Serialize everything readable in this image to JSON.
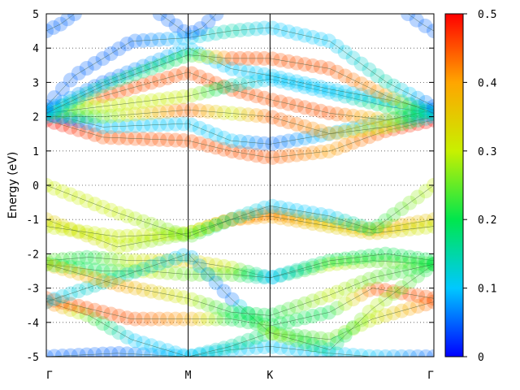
{
  "chart_data": {
    "type": "scatter",
    "title": "",
    "ylabel": "Energy (eV)",
    "xlabel": "",
    "ylim": [
      -5,
      5
    ],
    "yticks": [
      "5",
      "4",
      "3",
      "2",
      "1",
      "0",
      "-1",
      "-2",
      "-3",
      "-4",
      "-5"
    ],
    "kpoints": [
      {
        "label": "Γ",
        "x": 0
      },
      {
        "label": "M",
        "x": 1
      },
      {
        "label": "K",
        "x": 1.577
      },
      {
        "label": "Γ",
        "x": 2.732
      }
    ],
    "grid": "horizontal dotted lines at integer energies",
    "colorbar": {
      "min": 0,
      "max": 0.5,
      "ticks": [
        "0",
        "0.1",
        "0.2",
        "0.3",
        "0.4",
        "0.5"
      ],
      "colors": [
        "#0000ff",
        "#00c8ff",
        "#00e64d",
        "#c8f000",
        "#ffa500",
        "#ff0000"
      ]
    },
    "bands": [
      {
        "name": "b1",
        "x": [
          0,
          0.5,
          1,
          1.3,
          1.577,
          2.0,
          2.3,
          2.732
        ],
        "y": [
          -5.0,
          -4.9,
          -5.0,
          -4.8,
          -4.7,
          -4.9,
          -5.0,
          -5.0
        ],
        "w": [
          0.05,
          0.05,
          0.1,
          0.1,
          0.1,
          0.1,
          0.1,
          0.05
        ]
      },
      {
        "name": "b2",
        "x": [
          0,
          0.3,
          0.6,
          1,
          1.3,
          1.577,
          2.0,
          2.3,
          2.732
        ],
        "y": [
          -3.4,
          -3.8,
          -4.5,
          -5.0,
          -4.7,
          -4.3,
          -4.5,
          -3.9,
          -3.4
        ],
        "w": [
          0.45,
          0.25,
          0.1,
          0.1,
          0.15,
          0.2,
          0.25,
          0.3,
          0.45
        ]
      },
      {
        "name": "b3",
        "x": [
          0,
          0.3,
          0.6,
          1,
          1.3,
          1.577,
          2.0,
          2.3,
          2.732
        ],
        "y": [
          -3.3,
          -3.6,
          -3.9,
          -3.9,
          -3.9,
          -4.1,
          -3.7,
          -3.0,
          -3.3
        ],
        "w": [
          0.45,
          0.45,
          0.45,
          0.4,
          0.2,
          0.2,
          0.2,
          0.45,
          0.45
        ]
      },
      {
        "name": "b4",
        "x": [
          0,
          0.3,
          0.6,
          1,
          1.3,
          1.577,
          2.0,
          2.3,
          2.732
        ],
        "y": [
          -2.2,
          -2.1,
          -2.2,
          -2.2,
          -2.4,
          -2.7,
          -2.3,
          -2.2,
          -2.3
        ],
        "w": [
          0.25,
          0.2,
          0.3,
          0.35,
          0.3,
          0.1,
          0.3,
          0.25,
          0.25
        ]
      },
      {
        "name": "b5",
        "x": [
          0,
          0.4,
          0.7,
          1,
          1.3,
          1.577,
          2.0,
          2.4,
          2.732
        ],
        "y": [
          -2.3,
          -2.5,
          -2.5,
          -2.6,
          -2.6,
          -2.7,
          -2.2,
          -2.0,
          -2.2
        ],
        "w": [
          0.2,
          0.2,
          0.3,
          0.25,
          0.25,
          0.1,
          0.2,
          0.2,
          0.2
        ]
      },
      {
        "name": "b6",
        "x": [
          0,
          0.5,
          1,
          1.3,
          1.577,
          2.0,
          2.3,
          2.732
        ],
        "y": [
          -3.4,
          -2.7,
          -2.0,
          -3.3,
          -4.3,
          -4.8,
          -3.6,
          -2.3
        ],
        "w": [
          0.1,
          0.15,
          0.1,
          0.05,
          0.3,
          0.15,
          0.3,
          0.2
        ]
      },
      {
        "name": "b7",
        "x": [
          0,
          0.5,
          1,
          1.3,
          1.577,
          2.0,
          2.3,
          2.732
        ],
        "y": [
          -2.3,
          -2.9,
          -3.3,
          -3.7,
          -3.8,
          -3.2,
          -2.7,
          -2.3
        ],
        "w": [
          0.35,
          0.4,
          0.3,
          0.2,
          0.2,
          0.3,
          0.25,
          0.2
        ]
      },
      {
        "name": "b8",
        "x": [
          0,
          0.5,
          1,
          1.3,
          1.577,
          2.0,
          2.3,
          2.732
        ],
        "y": [
          -1.0,
          -1.8,
          -1.4,
          -1.0,
          -0.8,
          -1.1,
          -1.3,
          -1.0
        ],
        "w": [
          0.35,
          0.3,
          0.25,
          0.4,
          0.45,
          0.35,
          0.4,
          0.35
        ]
      },
      {
        "name": "b9",
        "x": [
          0,
          0.5,
          1,
          1.3,
          1.577,
          2.0,
          2.3,
          2.732
        ],
        "y": [
          -1.2,
          -1.5,
          -1.4,
          -1.0,
          -0.9,
          -1.2,
          -1.4,
          -1.2
        ],
        "w": [
          0.3,
          0.3,
          0.3,
          0.4,
          0.4,
          0.35,
          0.35,
          0.3
        ]
      },
      {
        "name": "b10",
        "x": [
          0,
          0.5,
          1,
          1.3,
          1.577,
          2.0,
          2.3,
          2.732
        ],
        "y": [
          0.0,
          -0.8,
          -1.5,
          -1.0,
          -0.6,
          -0.9,
          -1.3,
          0.0
        ],
        "w": [
          0.3,
          0.3,
          0.25,
          0.15,
          0.1,
          0.1,
          0.2,
          0.3
        ]
      },
      {
        "name": "b11",
        "x": [
          0,
          0.4,
          1,
          1.3,
          1.577,
          2.0,
          2.4,
          2.732
        ],
        "y": [
          1.9,
          1.4,
          1.3,
          1.0,
          0.8,
          1.0,
          1.6,
          1.9
        ],
        "w": [
          0.5,
          0.45,
          0.45,
          0.45,
          0.45,
          0.4,
          0.45,
          0.5
        ]
      },
      {
        "name": "b12",
        "x": [
          0,
          0.4,
          1,
          1.3,
          1.577,
          2.0,
          2.4,
          2.732
        ],
        "y": [
          2.1,
          1.7,
          1.8,
          1.3,
          1.2,
          1.5,
          1.9,
          2.1
        ],
        "w": [
          0.0,
          0.1,
          0.1,
          0.1,
          0.05,
          0.1,
          0.1,
          0.05
        ]
      },
      {
        "name": "b13",
        "x": [
          0,
          0.4,
          1,
          1.3,
          1.577,
          2.0,
          2.4,
          2.732
        ],
        "y": [
          2.0,
          2.0,
          2.2,
          2.1,
          2.0,
          1.5,
          1.7,
          2.0
        ],
        "w": [
          0.1,
          0.25,
          0.45,
          0.3,
          0.45,
          0.4,
          0.3,
          0.1
        ]
      },
      {
        "name": "b14",
        "x": [
          0,
          0.4,
          1,
          1.3,
          1.577,
          2.0,
          2.4,
          2.732
        ],
        "y": [
          2.2,
          2.6,
          3.3,
          2.8,
          2.5,
          2.1,
          1.9,
          2.2
        ],
        "w": [
          0.05,
          0.45,
          0.45,
          0.45,
          0.45,
          0.45,
          0.35,
          0.05
        ]
      },
      {
        "name": "b15",
        "x": [
          0,
          0.4,
          1,
          1.3,
          1.577,
          2.0,
          2.4,
          2.732
        ],
        "y": [
          2.1,
          2.3,
          2.6,
          2.9,
          3.1,
          2.7,
          2.3,
          2.1
        ],
        "w": [
          0.2,
          0.3,
          0.3,
          0.15,
          0.1,
          0.1,
          0.2,
          0.2
        ]
      },
      {
        "name": "b16",
        "x": [
          0,
          0.4,
          1,
          1.3,
          1.577,
          2.0,
          2.4,
          2.732
        ],
        "y": [
          2.2,
          3.0,
          4.0,
          3.4,
          3.2,
          2.8,
          2.5,
          2.2
        ],
        "w": [
          0.1,
          0.05,
          0.1,
          0.1,
          0.1,
          0.1,
          0.1,
          0.1
        ]
      },
      {
        "name": "b17",
        "x": [
          0,
          0.4,
          1,
          1.3,
          1.577,
          2.0,
          2.4,
          2.732
        ],
        "y": [
          2.1,
          2.9,
          3.8,
          3.7,
          3.7,
          3.4,
          2.6,
          2.1
        ],
        "w": [
          0.1,
          0.15,
          0.2,
          0.45,
          0.45,
          0.45,
          0.4,
          0.1
        ]
      },
      {
        "name": "b18",
        "x": [
          0,
          0.2,
          0.6,
          1,
          1.3,
          1.577,
          2.0,
          2.4,
          2.732
        ],
        "y": [
          2.3,
          3.2,
          4.2,
          4.3,
          4.5,
          4.6,
          4.2,
          3.0,
          2.3
        ],
        "w": [
          0.05,
          0.05,
          0.05,
          0.1,
          0.15,
          0.1,
          0.1,
          0.15,
          0.05
        ]
      },
      {
        "name": "b19",
        "x": [
          0,
          0.1,
          0.2
        ],
        "y": [
          4.5,
          4.7,
          5.0
        ],
        "w": [
          0.05,
          0.05,
          0.05
        ]
      },
      {
        "name": "b20",
        "x": [
          0.8,
          0.9,
          1.0,
          1.1,
          1.2
        ],
        "y": [
          5.0,
          4.7,
          4.4,
          4.6,
          5.0
        ],
        "w": [
          0.05,
          0.05,
          0.05,
          0.05,
          0.05
        ]
      },
      {
        "name": "b21",
        "x": [
          2.55,
          2.65,
          2.732
        ],
        "y": [
          5.0,
          4.7,
          4.5
        ],
        "w": [
          0.05,
          0.05,
          0.05
        ]
      }
    ]
  }
}
